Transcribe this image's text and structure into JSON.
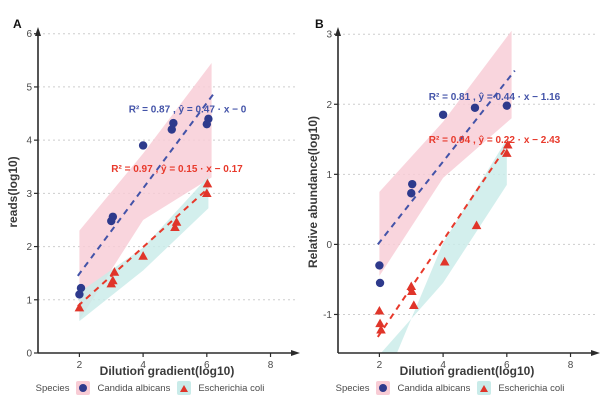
{
  "colors": {
    "candida_point": "#2e3a8c",
    "candida_line": "#4353a8",
    "ecoli_point": "#e0352a",
    "ecoli_line": "#e8392b",
    "pink_band": "#f8ccd5",
    "cyan_band": "#c9ebe9",
    "gridline": "#cdcdcd",
    "axis": "#2b2b2b"
  },
  "legend": {
    "title": "Species",
    "items": [
      {
        "name": "Candida albicans",
        "marker": "circle",
        "color": "#2e3a8c",
        "bg": "#f8ccd5"
      },
      {
        "name": "Escherichia coli",
        "marker": "triangle",
        "color": "#e0352a",
        "bg": "#c9ebe9"
      }
    ]
  },
  "chart_data": [
    {
      "type": "scatter",
      "panel_label": "A",
      "xlabel": "Dilution gradient(log10)",
      "ylabel": "reads(log10)",
      "xlim": [
        0.7,
        8.8
      ],
      "ylim": [
        0,
        6.07
      ],
      "xticks": [
        2,
        4,
        6,
        8
      ],
      "yticks": [
        0,
        1,
        2,
        3,
        4,
        5,
        6
      ],
      "grid_yticks": [
        1,
        2,
        3,
        4,
        5,
        6
      ],
      "series": [
        {
          "name": "Candida albicans",
          "marker": "circle",
          "color": "#2e3a8c",
          "points": [
            [
              2,
              1.1
            ],
            [
              2.05,
              1.22
            ],
            [
              3,
              2.48
            ],
            [
              3.05,
              2.56
            ],
            [
              4,
              3.9
            ],
            [
              4.9,
              4.2
            ],
            [
              4.95,
              4.32
            ],
            [
              6,
              4.3
            ],
            [
              6.05,
              4.4
            ]
          ],
          "fit": {
            "x1": 1.95,
            "y1": 1.45,
            "x2": 6.25,
            "y2": 4.9,
            "r2": "0.87",
            "equation": "0.47 · x − 0",
            "annotation": "R² = 0.87 , ŷ = 0.47 · x − 0",
            "line_color": "#4353a8",
            "band_color": "#f8ccd5",
            "band": [
              [
                2,
                0.62
              ],
              [
                4,
                2.5
              ],
              [
                6.15,
                3.3
              ],
              [
                6.15,
                5.45
              ],
              [
                4,
                3.75
              ],
              [
                2,
                2.3
              ]
            ],
            "label_x": 3.55,
            "label_y": 4.52
          }
        },
        {
          "name": "Escherichia coli",
          "marker": "triangle",
          "color": "#e0352a",
          "points": [
            [
              2,
              0.85
            ],
            [
              3,
              1.3
            ],
            [
              3.05,
              1.36
            ],
            [
              3.1,
              1.52
            ],
            [
              4,
              1.82
            ],
            [
              5,
              2.36
            ],
            [
              5.05,
              2.46
            ],
            [
              6,
              3.0
            ],
            [
              6.02,
              3.18
            ]
          ],
          "fit": {
            "x1": 1.95,
            "y1": 0.88,
            "x2": 6.05,
            "y2": 3.1,
            "r2": "0.97",
            "equation": "0.15 · x − 0.17",
            "annotation": "R² = 0.97 , ŷ = 0.15 · x − 0.17",
            "line_color": "#e8392b",
            "band_color": "#c9ebe9",
            "band": [
              [
                2,
                0.6
              ],
              [
                4,
                1.55
              ],
              [
                6.05,
                2.72
              ],
              [
                6.05,
                3.32
              ],
              [
                4,
                1.98
              ],
              [
                2,
                1.14
              ]
            ],
            "label_x": 3.0,
            "label_y": 3.4
          }
        }
      ]
    },
    {
      "type": "scatter",
      "panel_label": "B",
      "xlabel": "Dilution gradient(log10)",
      "ylabel": "Relative abundance(log10)",
      "xlim": [
        0.7,
        8.8
      ],
      "ylim": [
        -1.55,
        3.06
      ],
      "xticks": [
        2,
        4,
        6,
        8
      ],
      "yticks": [
        -1,
        0,
        1,
        2,
        3
      ],
      "grid_yticks": [
        -1,
        0,
        1,
        2,
        3
      ],
      "series": [
        {
          "name": "Candida albicans",
          "marker": "circle",
          "color": "#2e3a8c",
          "points": [
            [
              2,
              -0.3
            ],
            [
              2.02,
              -0.55
            ],
            [
              3,
              0.73
            ],
            [
              3.03,
              0.86
            ],
            [
              4,
              1.85
            ],
            [
              5,
              1.95
            ],
            [
              6,
              1.98
            ]
          ],
          "fit": {
            "x1": 1.95,
            "y1": 0.0,
            "x2": 6.25,
            "y2": 2.48,
            "r2": "0.81",
            "equation": "0.44 · x − 1.16",
            "annotation": "R² = 0.81 , ŷ = 0.44 · x − 1.16",
            "line_color": "#4353a8",
            "band_color": "#f8ccd5",
            "band": [
              [
                2,
                -0.45
              ],
              [
                4,
                0.95
              ],
              [
                6.15,
                1.8
              ],
              [
                6.15,
                3.05
              ],
              [
                4,
                1.75
              ],
              [
                2,
                0.75
              ]
            ],
            "label_x": 3.55,
            "label_y": 2.06
          }
        },
        {
          "name": "Escherichia coli",
          "marker": "triangle",
          "color": "#e0352a",
          "points": [
            [
              2,
              -0.95
            ],
            [
              2.02,
              -1.13
            ],
            [
              2.05,
              -1.22
            ],
            [
              3,
              -0.6
            ],
            [
              3.02,
              -0.67
            ],
            [
              3.08,
              -0.87
            ],
            [
              4.05,
              -0.25
            ],
            [
              5.05,
              0.27
            ],
            [
              6,
              1.3
            ],
            [
              6.03,
              1.42
            ]
          ],
          "fit": {
            "x1": 1.95,
            "y1": -1.32,
            "x2": 6.1,
            "y2": 1.47,
            "r2": "0.94",
            "equation": "0.22 · x − 2.43",
            "annotation": "R² = 0.94 , ŷ = 0.22 · x − 2.43",
            "line_color": "#e8392b",
            "band_color": "#c9ebe9",
            "band": [
              [
                2.05,
                -1.55
              ],
              [
                4,
                -0.55
              ],
              [
                6,
                0.85
              ],
              [
                6,
                1.5
              ],
              [
                4,
                0.02
              ],
              [
                2.55,
                -1.55
              ]
            ],
            "label_x": 3.55,
            "label_y": 1.45
          }
        }
      ]
    }
  ]
}
